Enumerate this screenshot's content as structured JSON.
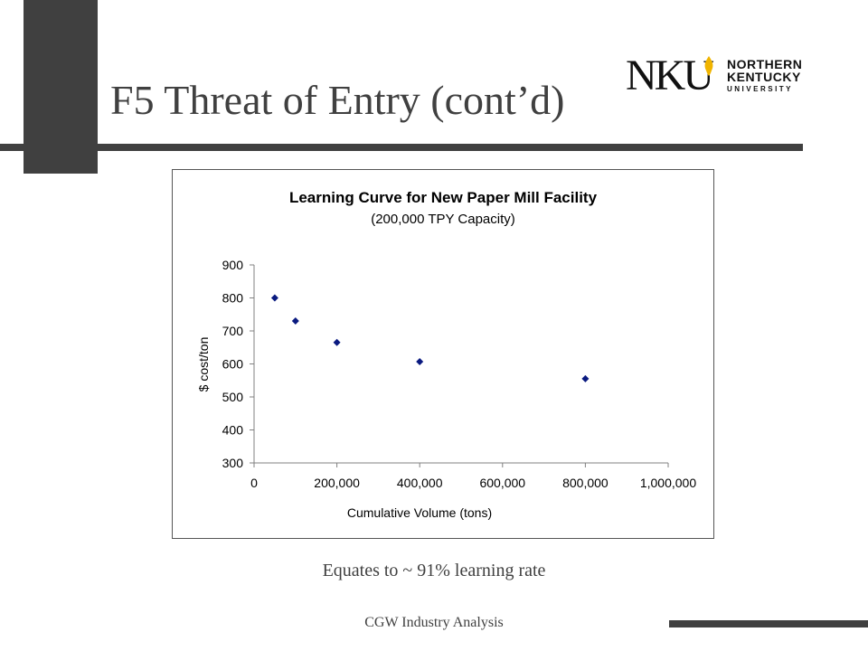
{
  "slide": {
    "title": "F5 Threat of Entry (cont’d)",
    "caption": "Equates to ~ 91% learning rate",
    "footer": "CGW Industry Analysis"
  },
  "logo": {
    "mark": "NKU",
    "line1": "NORTHERN",
    "line2": "KENTUCKY",
    "line3": "UNIVERSITY",
    "flame_color": "#f0b400"
  },
  "colors": {
    "accent_gray": "#404040",
    "marker": "#0a1a80"
  },
  "chart_data": {
    "type": "scatter",
    "title": "Learning Curve for New Paper Mill Facility",
    "subtitle": "(200,000 TPY Capacity)",
    "xlabel": "Cumulative Volume (tons)",
    "ylabel": "$ cost/ton",
    "xlim": [
      0,
      1000000
    ],
    "ylim": [
      300,
      900
    ],
    "x_ticks": [
      0,
      200000,
      400000,
      600000,
      800000,
      1000000
    ],
    "x_tick_labels": [
      "0",
      "200,000",
      "400,000",
      "600,000",
      "800,000",
      "1,000,000"
    ],
    "y_ticks": [
      300,
      400,
      500,
      600,
      700,
      800,
      900
    ],
    "y_tick_labels": [
      "300",
      "400",
      "500",
      "600",
      "700",
      "800",
      "900"
    ],
    "grid": false,
    "marker": "diamond",
    "points": [
      {
        "x": 50000,
        "y": 800
      },
      {
        "x": 100000,
        "y": 730
      },
      {
        "x": 200000,
        "y": 665
      },
      {
        "x": 400000,
        "y": 607
      },
      {
        "x": 800000,
        "y": 555
      }
    ]
  }
}
